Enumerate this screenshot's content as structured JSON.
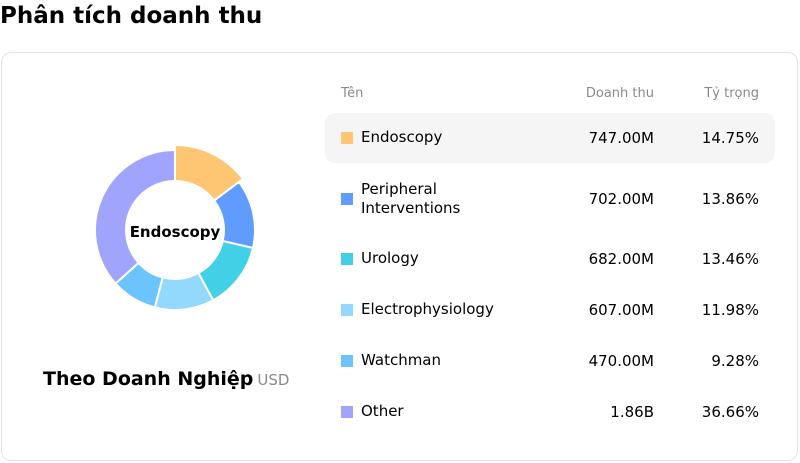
{
  "page": {
    "title": "Phân tích doanh thu"
  },
  "chart": {
    "center_label": "Endoscopy",
    "subtitle": "Theo Doanh Nghiệp",
    "unit": "USD"
  },
  "table": {
    "headers": {
      "name": "Tên",
      "revenue": "Doanh thu",
      "share": "Tỷ trọng"
    },
    "rows": [
      {
        "name": "Endoscopy",
        "revenue": "747.00M",
        "share": "14.75%",
        "color": "#fec672"
      },
      {
        "name": "Peripheral Interventions",
        "revenue": "702.00M",
        "share": "13.86%",
        "color": "#5f9cfd"
      },
      {
        "name": "Urology",
        "revenue": "682.00M",
        "share": "13.46%",
        "color": "#42d0e6"
      },
      {
        "name": "Electrophysiology",
        "revenue": "607.00M",
        "share": "11.98%",
        "color": "#93d8fd"
      },
      {
        "name": "Watchman",
        "revenue": "470.00M",
        "share": "9.28%",
        "color": "#6cc4fd"
      },
      {
        "name": "Other",
        "revenue": "1.86B",
        "share": "36.66%",
        "color": "#a0a4fd"
      }
    ]
  },
  "chart_data": {
    "type": "pie",
    "variant": "donut",
    "title": "Phân tích doanh thu",
    "subtitle": "Theo Doanh Nghiệp (USD)",
    "center_label": "Endoscopy",
    "categories": [
      "Endoscopy",
      "Peripheral Interventions",
      "Urology",
      "Electrophysiology",
      "Watchman",
      "Other"
    ],
    "values": [
      747000000,
      702000000,
      682000000,
      607000000,
      470000000,
      1860000000
    ],
    "percentages": [
      14.75,
      13.86,
      13.46,
      11.98,
      9.28,
      36.66
    ],
    "colors": [
      "#fec672",
      "#5f9cfd",
      "#42d0e6",
      "#93d8fd",
      "#6cc4fd",
      "#a0a4fd"
    ],
    "highlighted": "Endoscopy",
    "legend_position": "right (table)"
  }
}
